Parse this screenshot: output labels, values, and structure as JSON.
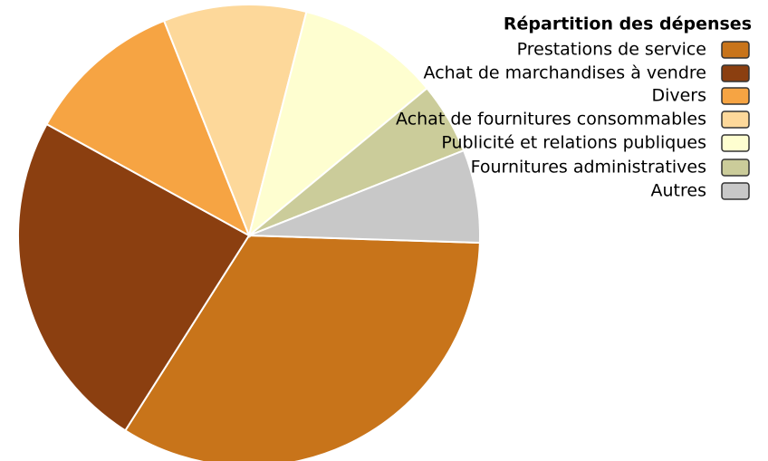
{
  "chart_data": {
    "type": "pie",
    "title": "Répartition des dépenses",
    "categories": [
      "Prestations de service",
      "Achat de marchandises à vendre",
      "Divers",
      "Achat de fournitures consommables",
      "Publicité et relations publiques",
      "Fournitures administratives",
      "Autres"
    ],
    "values": [
      33.5,
      24,
      11,
      10,
      10,
      5,
      6.5
    ],
    "colors": [
      "#c8741a",
      "#8b3f10",
      "#f6a443",
      "#fdd89a",
      "#fefed0",
      "#cbcc9a",
      "#c8c8c8"
    ],
    "legend": "top-right"
  }
}
